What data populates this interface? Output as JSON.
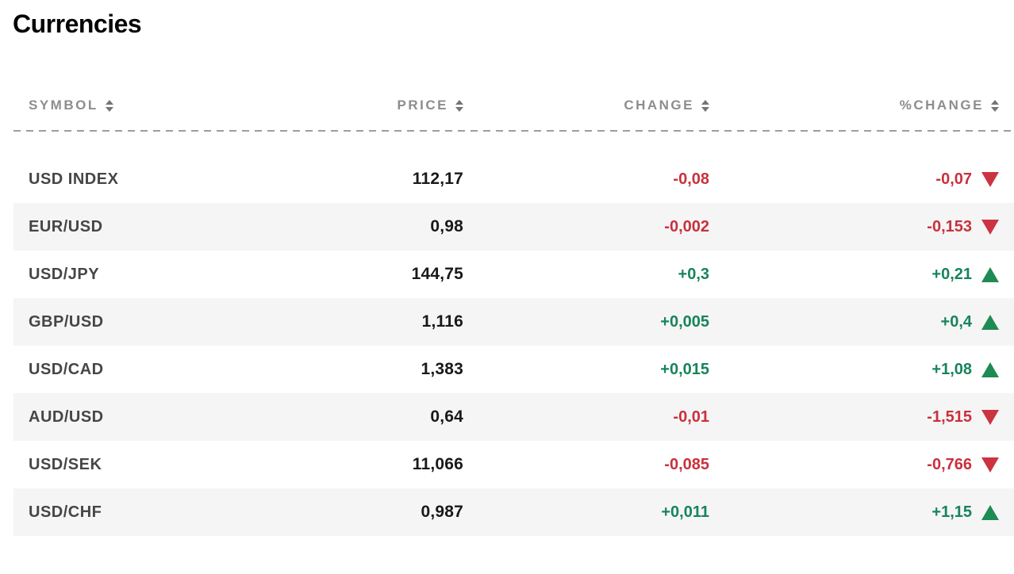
{
  "page": {
    "title": "Currencies"
  },
  "table": {
    "columns": [
      {
        "key": "symbol",
        "label": "SYMBOL",
        "sortable": true
      },
      {
        "key": "price",
        "label": "PRICE",
        "sortable": true
      },
      {
        "key": "change",
        "label": "CHANGE",
        "sortable": true
      },
      {
        "key": "pct_change",
        "label": "%CHANGE",
        "sortable": true
      }
    ],
    "rows": [
      {
        "symbol": "USD INDEX",
        "price": "112,17",
        "change": "-0,08",
        "pct_change": "-0,07",
        "direction": "down"
      },
      {
        "symbol": "EUR/USD",
        "price": "0,98",
        "change": "-0,002",
        "pct_change": "-0,153",
        "direction": "down"
      },
      {
        "symbol": "USD/JPY",
        "price": "144,75",
        "change": "+0,3",
        "pct_change": "+0,21",
        "direction": "up"
      },
      {
        "symbol": "GBP/USD",
        "price": "1,116",
        "change": "+0,005",
        "pct_change": "+0,4",
        "direction": "up"
      },
      {
        "symbol": "USD/CAD",
        "price": "1,383",
        "change": "+0,015",
        "pct_change": "+1,08",
        "direction": "up"
      },
      {
        "symbol": "AUD/USD",
        "price": "0,64",
        "change": "-0,01",
        "pct_change": "-1,515",
        "direction": "down"
      },
      {
        "symbol": "USD/SEK",
        "price": "11,066",
        "change": "-0,085",
        "pct_change": "-0,766",
        "direction": "down"
      },
      {
        "symbol": "USD/CHF",
        "price": "0,987",
        "change": "+0,011",
        "pct_change": "+1,15",
        "direction": "up"
      }
    ]
  },
  "colors": {
    "up_text": "#17845a",
    "up_triangle": "#1e8a54",
    "down_text": "#c8313d",
    "down_triangle": "#cc3340",
    "header_text": "#8d8d8d",
    "symbol_text": "#464646",
    "price_text": "#191919",
    "alt_row_bg": "#f5f5f5",
    "divider": "#9e9e9e"
  },
  "icons": {
    "sort": "sort-arrows-icon",
    "up": "up-triangle-icon",
    "down": "down-triangle-icon"
  }
}
